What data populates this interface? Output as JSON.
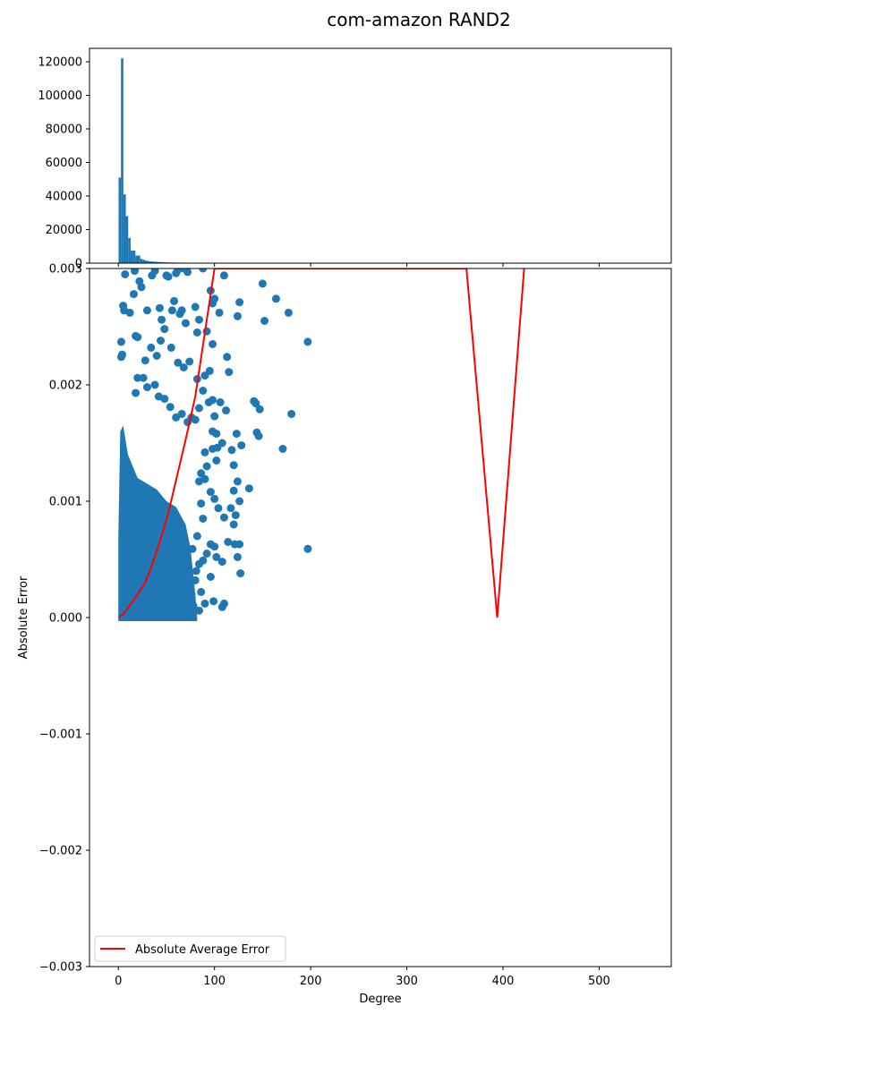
{
  "title": "com-amazon  RAND2",
  "colors": {
    "scatter": "#1f77b4",
    "hist": "#1f77b4",
    "avg_line": "#ff0000",
    "axes": "#000000"
  },
  "chart_data": [
    {
      "type": "bar",
      "panel": "histogram",
      "xlim": [
        -30,
        575
      ],
      "ylim": [
        0,
        128000
      ],
      "y_ticks": [
        0,
        20000,
        40000,
        60000,
        80000,
        100000,
        120000
      ],
      "y_tick_labels": [
        "0",
        "20000",
        "40000",
        "60000",
        "80000",
        "100000",
        "120000"
      ],
      "bin_width": 2.5,
      "bins": [
        {
          "x": 1.5,
          "count": 51000
        },
        {
          "x": 4.0,
          "count": 122000
        },
        {
          "x": 6.5,
          "count": 41000
        },
        {
          "x": 9.0,
          "count": 28000
        },
        {
          "x": 11.5,
          "count": 15000
        },
        {
          "x": 14.0,
          "count": 7500
        },
        {
          "x": 16.5,
          "count": 7500
        },
        {
          "x": 19.0,
          "count": 4500
        },
        {
          "x": 21.5,
          "count": 4500
        },
        {
          "x": 24.0,
          "count": 2500
        },
        {
          "x": 26.5,
          "count": 2000
        },
        {
          "x": 29.0,
          "count": 1500
        },
        {
          "x": 31.5,
          "count": 1200
        },
        {
          "x": 34.0,
          "count": 1000
        },
        {
          "x": 36.5,
          "count": 900
        },
        {
          "x": 39.0,
          "count": 800
        },
        {
          "x": 41.5,
          "count": 700
        },
        {
          "x": 44.0,
          "count": 600
        },
        {
          "x": 46.5,
          "count": 600
        },
        {
          "x": 49.0,
          "count": 500
        },
        {
          "x": 51.5,
          "count": 450
        },
        {
          "x": 54.0,
          "count": 400
        },
        {
          "x": 56.5,
          "count": 380
        },
        {
          "x": 59.0,
          "count": 350
        },
        {
          "x": 61.5,
          "count": 330
        },
        {
          "x": 64.0,
          "count": 300
        },
        {
          "x": 66.5,
          "count": 280
        },
        {
          "x": 69.0,
          "count": 260
        },
        {
          "x": 71.5,
          "count": 240
        },
        {
          "x": 74.0,
          "count": 150
        }
      ]
    },
    {
      "type": "scatter",
      "panel": "main",
      "xlabel": "Degree",
      "ylabel": "Absolute Error",
      "xlim": [
        -30,
        575
      ],
      "ylim": [
        -0.003,
        0.003
      ],
      "x_ticks": [
        0,
        100,
        200,
        300,
        400,
        500
      ],
      "x_tick_labels": [
        "0",
        "100",
        "200",
        "300",
        "400",
        "500"
      ],
      "y_ticks": [
        -0.003,
        -0.002,
        -0.001,
        0.0,
        0.001,
        0.002,
        0.003
      ],
      "y_tick_labels": [
        "−0.003",
        "−0.002",
        "−0.001",
        "0.000",
        "0.001",
        "0.002",
        "0.003"
      ],
      "legend": {
        "position": "lower-left",
        "entries": [
          "Absolute Average Error"
        ]
      },
      "dense_region": [
        {
          "x": 0,
          "ymax": 0.0007
        },
        {
          "x": 2,
          "ymax": 0.0016
        },
        {
          "x": 5,
          "ymax": 0.00165
        },
        {
          "x": 10,
          "ymax": 0.0014
        },
        {
          "x": 15,
          "ymax": 0.0013
        },
        {
          "x": 20,
          "ymax": 0.0012
        },
        {
          "x": 30,
          "ymax": 0.00115
        },
        {
          "x": 40,
          "ymax": 0.0011
        },
        {
          "x": 50,
          "ymax": 0.001
        },
        {
          "x": 60,
          "ymax": 0.00095
        },
        {
          "x": 70,
          "ymax": 0.0008
        },
        {
          "x": 75,
          "ymax": 0.0006
        },
        {
          "x": 80,
          "ymax": 0.0002
        },
        {
          "x": 82,
          "ymax": 0.0
        }
      ],
      "points": [
        [
          3,
          0.00237
        ],
        [
          4,
          0.00226
        ],
        [
          3,
          0.00224
        ],
        [
          5,
          0.00268
        ],
        [
          6,
          0.00264
        ],
        [
          7,
          0.00295
        ],
        [
          12,
          0.00262
        ],
        [
          16,
          0.00278
        ],
        [
          17,
          0.00298
        ],
        [
          18,
          0.00242
        ],
        [
          20,
          0.00241
        ],
        [
          22,
          0.00289
        ],
        [
          24,
          0.00284
        ],
        [
          30,
          0.00264
        ],
        [
          35,
          0.00294
        ],
        [
          38,
          0.00298
        ],
        [
          43,
          0.00266
        ],
        [
          45,
          0.00256
        ],
        [
          48,
          0.00248
        ],
        [
          50,
          0.00294
        ],
        [
          52,
          0.00293
        ],
        [
          56,
          0.00264
        ],
        [
          58,
          0.00272
        ],
        [
          60,
          0.00296
        ],
        [
          62,
          0.00299
        ],
        [
          64,
          0.00261
        ],
        [
          66,
          0.00264
        ],
        [
          68,
          0.003
        ],
        [
          70,
          0.00253
        ],
        [
          72,
          0.00297
        ],
        [
          80,
          0.00267
        ],
        [
          82,
          0.00245
        ],
        [
          84,
          0.00256
        ],
        [
          88,
          0.003
        ],
        [
          92,
          0.00246
        ],
        [
          96,
          0.00281
        ],
        [
          98,
          0.0027
        ],
        [
          100,
          0.00274
        ],
        [
          98,
          0.00235
        ],
        [
          95,
          0.00212
        ],
        [
          105,
          0.00262
        ],
        [
          110,
          0.00294
        ],
        [
          113,
          0.00224
        ],
        [
          115,
          0.00211
        ],
        [
          124,
          0.00259
        ],
        [
          126,
          0.00271
        ],
        [
          150,
          0.00287
        ],
        [
          152,
          0.00255
        ],
        [
          164,
          0.00274
        ],
        [
          177,
          0.00262
        ],
        [
          197,
          0.00237
        ],
        [
          28,
          0.00221
        ],
        [
          34,
          0.00232
        ],
        [
          40,
          0.00225
        ],
        [
          44,
          0.00238
        ],
        [
          55,
          0.00232
        ],
        [
          62,
          0.00219
        ],
        [
          68,
          0.00215
        ],
        [
          74,
          0.0022
        ],
        [
          82,
          0.00205
        ],
        [
          90,
          0.00208
        ],
        [
          94,
          0.00185
        ],
        [
          98,
          0.00187
        ],
        [
          88,
          0.00195
        ],
        [
          84,
          0.0018
        ],
        [
          80,
          0.0017
        ],
        [
          76,
          0.00172
        ],
        [
          72,
          0.00168
        ],
        [
          66,
          0.00175
        ],
        [
          60,
          0.00172
        ],
        [
          54,
          0.00181
        ],
        [
          48,
          0.00188
        ],
        [
          42,
          0.0019
        ],
        [
          38,
          0.002
        ],
        [
          30,
          0.00198
        ],
        [
          26,
          0.00206
        ],
        [
          20,
          0.00206
        ],
        [
          18,
          0.00193
        ],
        [
          100,
          0.00173
        ],
        [
          106,
          0.00185
        ],
        [
          112,
          0.00178
        ],
        [
          98,
          0.0016
        ],
        [
          102,
          0.00158
        ],
        [
          108,
          0.0015
        ],
        [
          103,
          0.00146
        ],
        [
          98,
          0.00145
        ],
        [
          102,
          0.00135
        ],
        [
          118,
          0.00144
        ],
        [
          120,
          0.00131
        ],
        [
          123,
          0.00158
        ],
        [
          128,
          0.00148
        ],
        [
          141,
          0.00186
        ],
        [
          143,
          0.00184
        ],
        [
          147,
          0.00179
        ],
        [
          144,
          0.00159
        ],
        [
          146,
          0.00156
        ],
        [
          171,
          0.00145
        ],
        [
          180,
          0.00175
        ],
        [
          90,
          0.00142
        ],
        [
          92,
          0.0013
        ],
        [
          86,
          0.00124
        ],
        [
          84,
          0.00117
        ],
        [
          90,
          0.00119
        ],
        [
          96,
          0.00108
        ],
        [
          100,
          0.00102
        ],
        [
          120,
          0.00109
        ],
        [
          124,
          0.00117
        ],
        [
          136,
          0.00111
        ],
        [
          117,
          0.00094
        ],
        [
          122,
          0.00088
        ],
        [
          126,
          0.001
        ],
        [
          104,
          0.00094
        ],
        [
          110,
          0.00086
        ],
        [
          120,
          0.0008
        ],
        [
          114,
          0.00065
        ],
        [
          121,
          0.00063
        ],
        [
          126,
          0.00063
        ],
        [
          124,
          0.00052
        ],
        [
          127,
          0.00038
        ],
        [
          102,
          0.00052
        ],
        [
          108,
          0.00048
        ],
        [
          96,
          0.00063
        ],
        [
          100,
          0.00061
        ],
        [
          92,
          0.00055
        ],
        [
          88,
          0.00049
        ],
        [
          84,
          0.00046
        ],
        [
          80,
          0.00032
        ],
        [
          86,
          0.00022
        ],
        [
          84,
          6e-05
        ],
        [
          96,
          0.00035
        ],
        [
          99,
          0.00014
        ],
        [
          110,
          0.00012
        ],
        [
          108,
          9e-05
        ],
        [
          90,
          0.00012
        ],
        [
          78,
          0.0001
        ],
        [
          76,
          0.0002
        ],
        [
          81,
          0.0004
        ],
        [
          77,
          0.00059
        ],
        [
          82,
          0.0007
        ],
        [
          88,
          0.00085
        ],
        [
          86,
          0.00098
        ],
        [
          197,
          0.00059
        ]
      ]
    },
    {
      "type": "line",
      "panel": "main",
      "name": "Absolute Average Error",
      "x": [
        0,
        5,
        10,
        20,
        28,
        35,
        45,
        52,
        60,
        70,
        80,
        90,
        100,
        362,
        394,
        422
      ],
      "y": [
        0.0,
        3e-05,
        8e-05,
        0.0002,
        0.0003,
        0.00045,
        0.0007,
        0.0009,
        0.00118,
        0.00153,
        0.0019,
        0.00245,
        0.003,
        0.003,
        0.0,
        0.003
      ]
    }
  ]
}
